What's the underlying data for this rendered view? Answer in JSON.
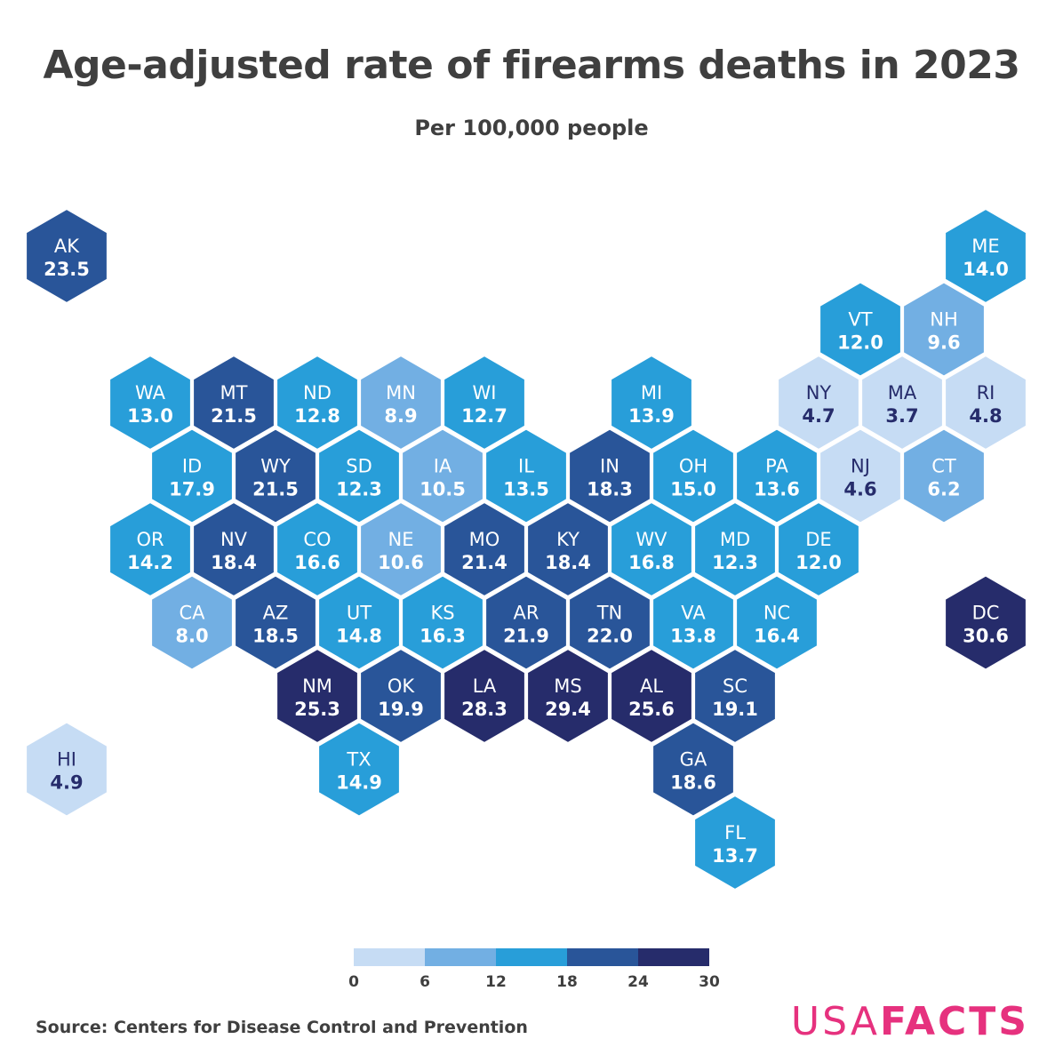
{
  "title": "Age-adjusted rate of firearms deaths in 2023",
  "subtitle": "Per 100,000 people",
  "source": "Source: Centers for Disease Control and Prevention",
  "brand": {
    "part1": "USA",
    "part2": "FACTS",
    "color": "#e6317e"
  },
  "legend": {
    "bins": [
      {
        "min": 0,
        "max": 6,
        "color": "#c6dcf4"
      },
      {
        "min": 6,
        "max": 12,
        "color": "#72afe3"
      },
      {
        "min": 12,
        "max": 18,
        "color": "#289ed9"
      },
      {
        "min": 18,
        "max": 24,
        "color": "#295599"
      },
      {
        "min": 24,
        "max": 30,
        "color": "#262c6b"
      }
    ],
    "ticks": [
      "0",
      "6",
      "12",
      "18",
      "24",
      "30"
    ]
  },
  "states": [
    {
      "abbr": "AK",
      "value": "23.5",
      "row": 0,
      "col": 0
    },
    {
      "abbr": "ME",
      "value": "14.0",
      "row": 0,
      "col": 11
    },
    {
      "abbr": "VT",
      "value": "12.0",
      "row": 1,
      "col": 9.5
    },
    {
      "abbr": "NH",
      "value": "9.6",
      "row": 1,
      "col": 10.5
    },
    {
      "abbr": "WA",
      "value": "13.0",
      "row": 2,
      "col": 1
    },
    {
      "abbr": "MT",
      "value": "21.5",
      "row": 2,
      "col": 2
    },
    {
      "abbr": "ND",
      "value": "12.8",
      "row": 2,
      "col": 3
    },
    {
      "abbr": "MN",
      "value": "8.9",
      "row": 2,
      "col": 4
    },
    {
      "abbr": "WI",
      "value": "12.7",
      "row": 2,
      "col": 5
    },
    {
      "abbr": "MI",
      "value": "13.9",
      "row": 2,
      "col": 7
    },
    {
      "abbr": "NY",
      "value": "4.7",
      "row": 2,
      "col": 9
    },
    {
      "abbr": "MA",
      "value": "3.7",
      "row": 2,
      "col": 10
    },
    {
      "abbr": "RI",
      "value": "4.8",
      "row": 2,
      "col": 11
    },
    {
      "abbr": "ID",
      "value": "17.9",
      "row": 3,
      "col": 1.5
    },
    {
      "abbr": "WY",
      "value": "21.5",
      "row": 3,
      "col": 2.5
    },
    {
      "abbr": "SD",
      "value": "12.3",
      "row": 3,
      "col": 3.5
    },
    {
      "abbr": "IA",
      "value": "10.5",
      "row": 3,
      "col": 4.5
    },
    {
      "abbr": "IL",
      "value": "13.5",
      "row": 3,
      "col": 5.5
    },
    {
      "abbr": "IN",
      "value": "18.3",
      "row": 3,
      "col": 6.5
    },
    {
      "abbr": "OH",
      "value": "15.0",
      "row": 3,
      "col": 7.5
    },
    {
      "abbr": "PA",
      "value": "13.6",
      "row": 3,
      "col": 8.5
    },
    {
      "abbr": "NJ",
      "value": "4.6",
      "row": 3,
      "col": 9.5
    },
    {
      "abbr": "CT",
      "value": "6.2",
      "row": 3,
      "col": 10.5
    },
    {
      "abbr": "OR",
      "value": "14.2",
      "row": 4,
      "col": 1
    },
    {
      "abbr": "NV",
      "value": "18.4",
      "row": 4,
      "col": 2
    },
    {
      "abbr": "CO",
      "value": "16.6",
      "row": 4,
      "col": 3
    },
    {
      "abbr": "NE",
      "value": "10.6",
      "row": 4,
      "col": 4
    },
    {
      "abbr": "MO",
      "value": "21.4",
      "row": 4,
      "col": 5
    },
    {
      "abbr": "KY",
      "value": "18.4",
      "row": 4,
      "col": 6
    },
    {
      "abbr": "WV",
      "value": "16.8",
      "row": 4,
      "col": 7
    },
    {
      "abbr": "MD",
      "value": "12.3",
      "row": 4,
      "col": 8
    },
    {
      "abbr": "DE",
      "value": "12.0",
      "row": 4,
      "col": 9
    },
    {
      "abbr": "CA",
      "value": "8.0",
      "row": 5,
      "col": 1.5
    },
    {
      "abbr": "AZ",
      "value": "18.5",
      "row": 5,
      "col": 2.5
    },
    {
      "abbr": "UT",
      "value": "14.8",
      "row": 5,
      "col": 3.5
    },
    {
      "abbr": "KS",
      "value": "16.3",
      "row": 5,
      "col": 4.5
    },
    {
      "abbr": "AR",
      "value": "21.9",
      "row": 5,
      "col": 5.5
    },
    {
      "abbr": "TN",
      "value": "22.0",
      "row": 5,
      "col": 6.5
    },
    {
      "abbr": "VA",
      "value": "13.8",
      "row": 5,
      "col": 7.5
    },
    {
      "abbr": "NC",
      "value": "16.4",
      "row": 5,
      "col": 8.5
    },
    {
      "abbr": "DC",
      "value": "30.6",
      "row": 5,
      "col": 11
    },
    {
      "abbr": "NM",
      "value": "25.3",
      "row": 6,
      "col": 3
    },
    {
      "abbr": "OK",
      "value": "19.9",
      "row": 6,
      "col": 4
    },
    {
      "abbr": "LA",
      "value": "28.3",
      "row": 6,
      "col": 5
    },
    {
      "abbr": "MS",
      "value": "29.4",
      "row": 6,
      "col": 6
    },
    {
      "abbr": "AL",
      "value": "25.6",
      "row": 6,
      "col": 7
    },
    {
      "abbr": "SC",
      "value": "19.1",
      "row": 6,
      "col": 8
    },
    {
      "abbr": "HI",
      "value": "4.9",
      "row": 7,
      "col": 0
    },
    {
      "abbr": "TX",
      "value": "14.9",
      "row": 7,
      "col": 3.5
    },
    {
      "abbr": "GA",
      "value": "18.6",
      "row": 7,
      "col": 7.5
    },
    {
      "abbr": "FL",
      "value": "13.7",
      "row": 8,
      "col": 8
    }
  ]
}
